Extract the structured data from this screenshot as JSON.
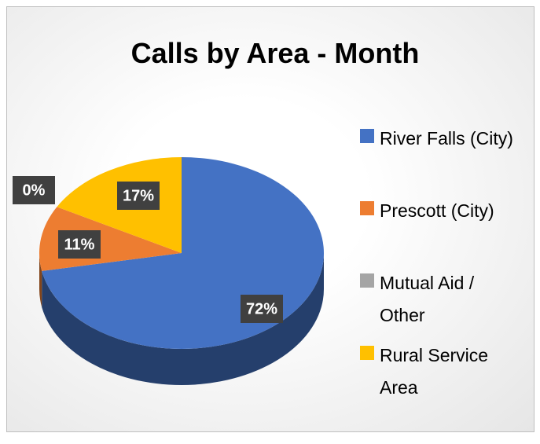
{
  "chart_data": {
    "type": "pie",
    "title": "Calls by Area - Month",
    "categories": [
      "River Falls (City)",
      "Prescott (City)",
      "Mutual Aid / Other",
      "Rural Service Area"
    ],
    "values": [
      72,
      11,
      0,
      17
    ],
    "value_labels": [
      "72%",
      "11%",
      "0%",
      "17%"
    ],
    "colors": [
      "#4472c4",
      "#ed7d31",
      "#a5a5a5",
      "#ffc000"
    ],
    "legend": "right"
  }
}
